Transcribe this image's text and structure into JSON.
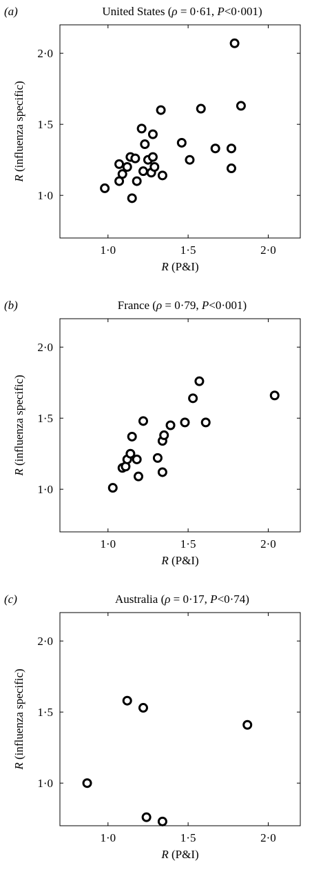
{
  "chart_data": [
    {
      "type": "scatter",
      "panel_label": "(a)",
      "title_name": "United States",
      "title_stats": [
        "(",
        "ρ",
        " = 0·61, ",
        "P",
        "<0·001)"
      ],
      "xlabel": [
        "R",
        " (P&I)"
      ],
      "ylabel": [
        "R",
        " (influenza specific)"
      ],
      "xlim": [
        0.7,
        2.2
      ],
      "ylim": [
        0.7,
        2.2
      ],
      "x_ticks": [
        {
          "value": 1.0,
          "label": "1·0"
        },
        {
          "value": 1.5,
          "label": "1·5"
        },
        {
          "value": 2.0,
          "label": "2·0"
        }
      ],
      "y_ticks": [
        {
          "value": 1.0,
          "label": "1·0"
        },
        {
          "value": 1.5,
          "label": "1·5"
        },
        {
          "value": 2.0,
          "label": "2·0"
        }
      ],
      "points": [
        [
          0.98,
          1.05
        ],
        [
          1.07,
          1.22
        ],
        [
          1.07,
          1.1
        ],
        [
          1.09,
          1.15
        ],
        [
          1.12,
          1.2
        ],
        [
          1.14,
          1.27
        ],
        [
          1.15,
          0.98
        ],
        [
          1.17,
          1.26
        ],
        [
          1.18,
          1.1
        ],
        [
          1.21,
          1.47
        ],
        [
          1.22,
          1.17
        ],
        [
          1.23,
          1.36
        ],
        [
          1.25,
          1.25
        ],
        [
          1.27,
          1.16
        ],
        [
          1.28,
          1.43
        ],
        [
          1.28,
          1.27
        ],
        [
          1.29,
          1.2
        ],
        [
          1.33,
          1.6
        ],
        [
          1.34,
          1.14
        ],
        [
          1.46,
          1.37
        ],
        [
          1.51,
          1.25
        ],
        [
          1.58,
          1.61
        ],
        [
          1.67,
          1.33
        ],
        [
          1.77,
          1.33
        ],
        [
          1.77,
          1.19
        ],
        [
          1.79,
          2.07
        ],
        [
          1.83,
          1.63
        ]
      ]
    },
    {
      "type": "scatter",
      "panel_label": "(b)",
      "title_name": "France",
      "title_stats": [
        "(",
        "ρ",
        " = 0·79, ",
        "P",
        "<0·001)"
      ],
      "xlabel": [
        "R",
        " (P&I)"
      ],
      "ylabel": [
        "R",
        " (influenza specific)"
      ],
      "xlim": [
        0.7,
        2.2
      ],
      "ylim": [
        0.7,
        2.2
      ],
      "x_ticks": [
        {
          "value": 1.0,
          "label": "1·0"
        },
        {
          "value": 1.5,
          "label": "1·5"
        },
        {
          "value": 2.0,
          "label": "2·0"
        }
      ],
      "y_ticks": [
        {
          "value": 1.0,
          "label": "1·0"
        },
        {
          "value": 1.5,
          "label": "1·5"
        },
        {
          "value": 2.0,
          "label": "2·0"
        }
      ],
      "points": [
        [
          1.03,
          1.01
        ],
        [
          1.09,
          1.15
        ],
        [
          1.11,
          1.16
        ],
        [
          1.12,
          1.21
        ],
        [
          1.14,
          1.25
        ],
        [
          1.15,
          1.37
        ],
        [
          1.18,
          1.21
        ],
        [
          1.19,
          1.09
        ],
        [
          1.22,
          1.48
        ],
        [
          1.31,
          1.22
        ],
        [
          1.34,
          1.12
        ],
        [
          1.34,
          1.34
        ],
        [
          1.35,
          1.38
        ],
        [
          1.39,
          1.45
        ],
        [
          1.48,
          1.47
        ],
        [
          1.53,
          1.64
        ],
        [
          1.57,
          1.76
        ],
        [
          1.61,
          1.47
        ],
        [
          2.04,
          1.66
        ]
      ]
    },
    {
      "type": "scatter",
      "panel_label": "(c)",
      "title_name": "Australia",
      "title_stats": [
        "(",
        "ρ",
        " = 0·17, ",
        "P",
        "<0·74)"
      ],
      "xlabel": [
        "R",
        " (P&I)"
      ],
      "ylabel": [
        "R",
        " (influenza specific)"
      ],
      "xlim": [
        0.7,
        2.2
      ],
      "ylim": [
        0.7,
        2.2
      ],
      "x_ticks": [
        {
          "value": 1.0,
          "label": "1·0"
        },
        {
          "value": 1.5,
          "label": "1·5"
        },
        {
          "value": 2.0,
          "label": "2·0"
        }
      ],
      "y_ticks": [
        {
          "value": 1.0,
          "label": "1·0"
        },
        {
          "value": 1.5,
          "label": "1·5"
        },
        {
          "value": 2.0,
          "label": "2·0"
        }
      ],
      "points": [
        [
          0.87,
          1.0
        ],
        [
          1.12,
          1.58
        ],
        [
          1.22,
          1.53
        ],
        [
          1.24,
          0.76
        ],
        [
          1.34,
          0.73
        ],
        [
          1.87,
          1.41
        ]
      ]
    }
  ]
}
